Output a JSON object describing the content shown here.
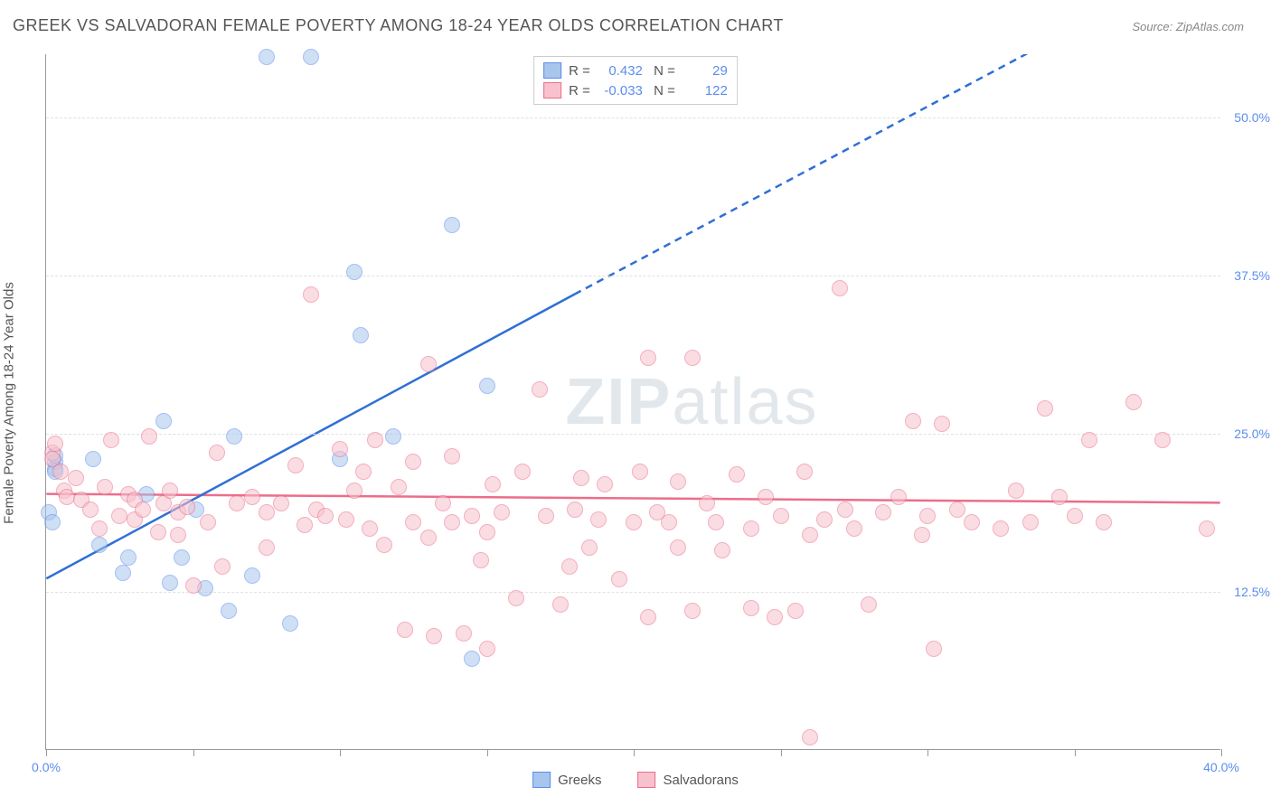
{
  "title": "GREEK VS SALVADORAN FEMALE POVERTY AMONG 18-24 YEAR OLDS CORRELATION CHART",
  "source": "Source: ZipAtlas.com",
  "ylabel": "Female Poverty Among 18-24 Year Olds",
  "watermark_bold": "ZIP",
  "watermark_light": "atlas",
  "chart": {
    "type": "scatter",
    "xlim": [
      0,
      40
    ],
    "ylim": [
      0,
      55
    ],
    "xtick_positions": [
      0,
      5,
      10,
      15,
      20,
      25,
      30,
      35,
      40
    ],
    "xtick_labels": {
      "0": "0.0%",
      "40": "40.0%"
    },
    "ytick_positions": [
      12.5,
      25.0,
      37.5,
      50.0
    ],
    "ytick_labels": [
      "12.5%",
      "25.0%",
      "37.5%",
      "50.0%"
    ],
    "grid_color": "#e0e0e0",
    "axis_color": "#999999",
    "background_color": "#ffffff",
    "label_color": "#5b8def",
    "text_color": "#555555",
    "point_radius": 9,
    "point_opacity": 0.55
  },
  "series": [
    {
      "name": "Greeks",
      "color_fill": "#a8c5ec",
      "color_stroke": "#5b8def",
      "R": "0.432",
      "N": "29",
      "trend": {
        "x1": 0,
        "y1": 13.5,
        "x2": 18,
        "y2": 36,
        "dash_from_x": 18,
        "dash_to_x": 35,
        "dash_to_y": 57
      },
      "points": [
        [
          0.3,
          22.8
        ],
        [
          0.3,
          22.2
        ],
        [
          0.3,
          22.0
        ],
        [
          0.3,
          23.3
        ],
        [
          0.1,
          18.8
        ],
        [
          0.2,
          18.0
        ],
        [
          1.6,
          23.0
        ],
        [
          1.8,
          16.2
        ],
        [
          2.6,
          14.0
        ],
        [
          2.8,
          15.2
        ],
        [
          3.4,
          20.2
        ],
        [
          4.0,
          26.0
        ],
        [
          4.2,
          13.2
        ],
        [
          4.6,
          15.2
        ],
        [
          5.1,
          19.0
        ],
        [
          5.4,
          12.8
        ],
        [
          6.2,
          11.0
        ],
        [
          6.4,
          24.8
        ],
        [
          7.0,
          13.8
        ],
        [
          7.5,
          54.8
        ],
        [
          8.3,
          10.0
        ],
        [
          9.0,
          54.8
        ],
        [
          10.5,
          37.8
        ],
        [
          10.7,
          32.8
        ],
        [
          13.8,
          41.5
        ],
        [
          14.5,
          7.2
        ],
        [
          15.0,
          28.8
        ],
        [
          10.0,
          23.0
        ],
        [
          11.8,
          24.8
        ]
      ]
    },
    {
      "name": "Salvadorans",
      "color_fill": "#f7c1cd",
      "color_stroke": "#eb6e8a",
      "R": "-0.033",
      "N": "122",
      "trend": {
        "x1": 0,
        "y1": 20.2,
        "x2": 40,
        "y2": 19.5
      },
      "points": [
        [
          0.2,
          23.5
        ],
        [
          0.2,
          23.0
        ],
        [
          0.3,
          24.2
        ],
        [
          0.5,
          22.0
        ],
        [
          0.6,
          20.5
        ],
        [
          0.7,
          20.0
        ],
        [
          1.0,
          21.5
        ],
        [
          1.2,
          19.8
        ],
        [
          1.5,
          19.0
        ],
        [
          1.8,
          17.5
        ],
        [
          2.0,
          20.8
        ],
        [
          2.2,
          24.5
        ],
        [
          2.5,
          18.5
        ],
        [
          2.8,
          20.2
        ],
        [
          3.0,
          19.8
        ],
        [
          3.0,
          18.2
        ],
        [
          3.3,
          19.0
        ],
        [
          3.5,
          24.8
        ],
        [
          3.8,
          17.2
        ],
        [
          4.0,
          19.5
        ],
        [
          4.2,
          20.5
        ],
        [
          4.5,
          18.8
        ],
        [
          4.8,
          19.2
        ],
        [
          5.0,
          13.0
        ],
        [
          5.5,
          18.0
        ],
        [
          6.0,
          14.5
        ],
        [
          6.5,
          19.5
        ],
        [
          7.0,
          20.0
        ],
        [
          7.5,
          18.8
        ],
        [
          7.5,
          16.0
        ],
        [
          8.0,
          19.5
        ],
        [
          8.5,
          22.5
        ],
        [
          8.8,
          17.8
        ],
        [
          9.0,
          36.0
        ],
        [
          9.2,
          19.0
        ],
        [
          9.5,
          18.5
        ],
        [
          10.0,
          23.8
        ],
        [
          10.2,
          18.2
        ],
        [
          10.5,
          20.5
        ],
        [
          10.8,
          22.0
        ],
        [
          11.0,
          17.5
        ],
        [
          11.2,
          24.5
        ],
        [
          11.5,
          16.2
        ],
        [
          12.0,
          20.8
        ],
        [
          12.2,
          9.5
        ],
        [
          12.5,
          18.0
        ],
        [
          12.5,
          22.8
        ],
        [
          13.0,
          30.5
        ],
        [
          13.0,
          16.8
        ],
        [
          13.2,
          9.0
        ],
        [
          13.5,
          19.5
        ],
        [
          13.8,
          18.0
        ],
        [
          13.8,
          23.2
        ],
        [
          14.2,
          9.2
        ],
        [
          14.5,
          18.5
        ],
        [
          14.8,
          15.0
        ],
        [
          15.0,
          8.0
        ],
        [
          15.0,
          17.2
        ],
        [
          15.2,
          21.0
        ],
        [
          15.5,
          18.8
        ],
        [
          16.0,
          12.0
        ],
        [
          16.2,
          22.0
        ],
        [
          16.8,
          28.5
        ],
        [
          17.0,
          18.5
        ],
        [
          17.5,
          11.5
        ],
        [
          17.8,
          14.5
        ],
        [
          18.0,
          19.0
        ],
        [
          18.2,
          21.5
        ],
        [
          18.5,
          16.0
        ],
        [
          18.8,
          18.2
        ],
        [
          19.0,
          21.0
        ],
        [
          19.5,
          13.5
        ],
        [
          20.0,
          18.0
        ],
        [
          20.2,
          22.0
        ],
        [
          20.5,
          31.0
        ],
        [
          20.5,
          10.5
        ],
        [
          20.8,
          18.8
        ],
        [
          21.2,
          18.0
        ],
        [
          21.5,
          16.0
        ],
        [
          21.5,
          21.2
        ],
        [
          22.0,
          11.0
        ],
        [
          22.0,
          31.0
        ],
        [
          22.5,
          19.5
        ],
        [
          22.8,
          18.0
        ],
        [
          23.0,
          15.8
        ],
        [
          23.5,
          21.8
        ],
        [
          24.0,
          17.5
        ],
        [
          24.0,
          11.2
        ],
        [
          24.5,
          20.0
        ],
        [
          24.8,
          10.5
        ],
        [
          25.0,
          18.5
        ],
        [
          25.5,
          11.0
        ],
        [
          25.8,
          22.0
        ],
        [
          26.0,
          17.0
        ],
        [
          26.0,
          1.0
        ],
        [
          26.5,
          18.2
        ],
        [
          27.0,
          36.5
        ],
        [
          27.2,
          19.0
        ],
        [
          27.5,
          17.5
        ],
        [
          28.0,
          11.5
        ],
        [
          28.5,
          18.8
        ],
        [
          29.0,
          20.0
        ],
        [
          29.5,
          26.0
        ],
        [
          29.8,
          17.0
        ],
        [
          30.0,
          18.5
        ],
        [
          30.2,
          8.0
        ],
        [
          30.5,
          25.8
        ],
        [
          31.0,
          19.0
        ],
        [
          31.5,
          18.0
        ],
        [
          32.5,
          17.5
        ],
        [
          33.0,
          20.5
        ],
        [
          33.5,
          18.0
        ],
        [
          34.0,
          27.0
        ],
        [
          35.0,
          18.5
        ],
        [
          35.5,
          24.5
        ],
        [
          37.0,
          27.5
        ],
        [
          38.0,
          24.5
        ],
        [
          39.5,
          17.5
        ],
        [
          34.5,
          20.0
        ],
        [
          36.0,
          18.0
        ],
        [
          4.5,
          17.0
        ],
        [
          5.8,
          23.5
        ]
      ]
    }
  ],
  "legend_bottom": [
    "Greeks",
    "Salvadorans"
  ]
}
